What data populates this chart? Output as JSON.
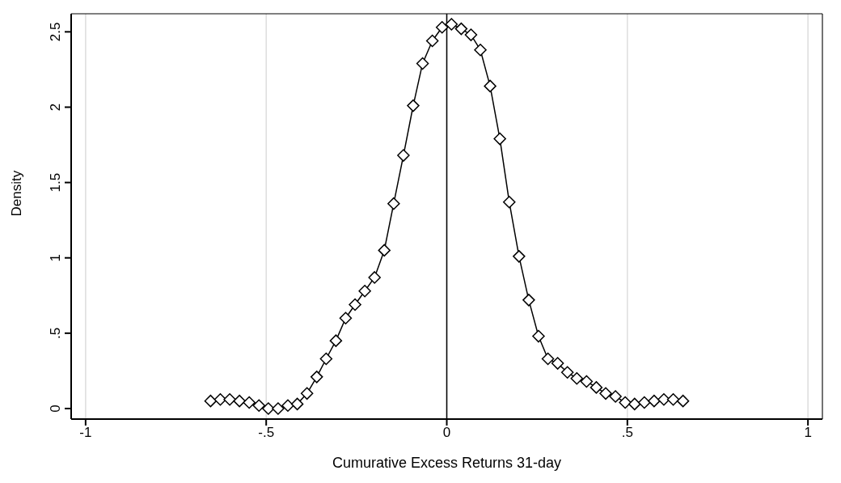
{
  "chart_data": {
    "type": "line",
    "xlabel": "Cumurative Excess Returns 31-day",
    "ylabel": "Density",
    "x": [
      -0.654,
      -0.627,
      -0.601,
      -0.574,
      -0.547,
      -0.52,
      -0.494,
      -0.467,
      -0.44,
      -0.414,
      -0.387,
      -0.36,
      -0.334,
      -0.307,
      -0.28,
      -0.254,
      -0.227,
      -0.2,
      -0.173,
      -0.147,
      -0.12,
      -0.093,
      -0.067,
      -0.04,
      -0.013,
      0.013,
      0.04,
      0.067,
      0.093,
      0.12,
      0.147,
      0.173,
      0.2,
      0.227,
      0.254,
      0.28,
      0.307,
      0.334,
      0.36,
      0.387,
      0.414,
      0.44,
      0.467,
      0.494,
      0.52,
      0.547,
      0.574,
      0.601,
      0.627,
      0.654
    ],
    "series": [
      {
        "color": "#000000",
        "values": [
          0.05,
          0.06,
          0.06,
          0.05,
          0.04,
          0.02,
          0,
          0,
          0.02,
          0.03,
          0.1,
          0.21,
          0.33,
          0.45,
          0.6,
          0.69,
          0.78,
          0.87,
          1.05,
          1.36,
          1.68,
          2.01,
          2.29,
          2.44,
          2.53,
          2.55,
          2.52,
          2.48,
          2.38,
          2.14,
          1.79,
          1.37,
          1.01,
          0.72,
          0.48,
          0.33,
          0.3,
          0.24,
          0.2,
          0.18,
          0.14,
          0.1,
          0.08,
          0.04,
          0.03,
          0.04,
          0.05,
          0.06,
          0.06,
          0.05
        ]
      }
    ],
    "xlim": [
      -1.04,
      1.04
    ],
    "xticks": [
      -1,
      {
        "value": -0.5,
        "label": "-.5"
      },
      0,
      {
        "value": 0.5,
        "label": ".5"
      },
      1
    ],
    "ylim": [
      -0.07,
      2.62
    ],
    "yticks": [
      0,
      {
        "value": 0.5,
        "label": ".5"
      },
      1,
      {
        "value": 1.5,
        "label": "1.5"
      },
      2,
      {
        "value": 2.5,
        "label": "2.5"
      }
    ],
    "grid": "x",
    "marker": "diamond",
    "line_style": "solid",
    "ref_lines": [
      {
        "axis": "x",
        "value": 0,
        "color": "#000000"
      }
    ]
  }
}
